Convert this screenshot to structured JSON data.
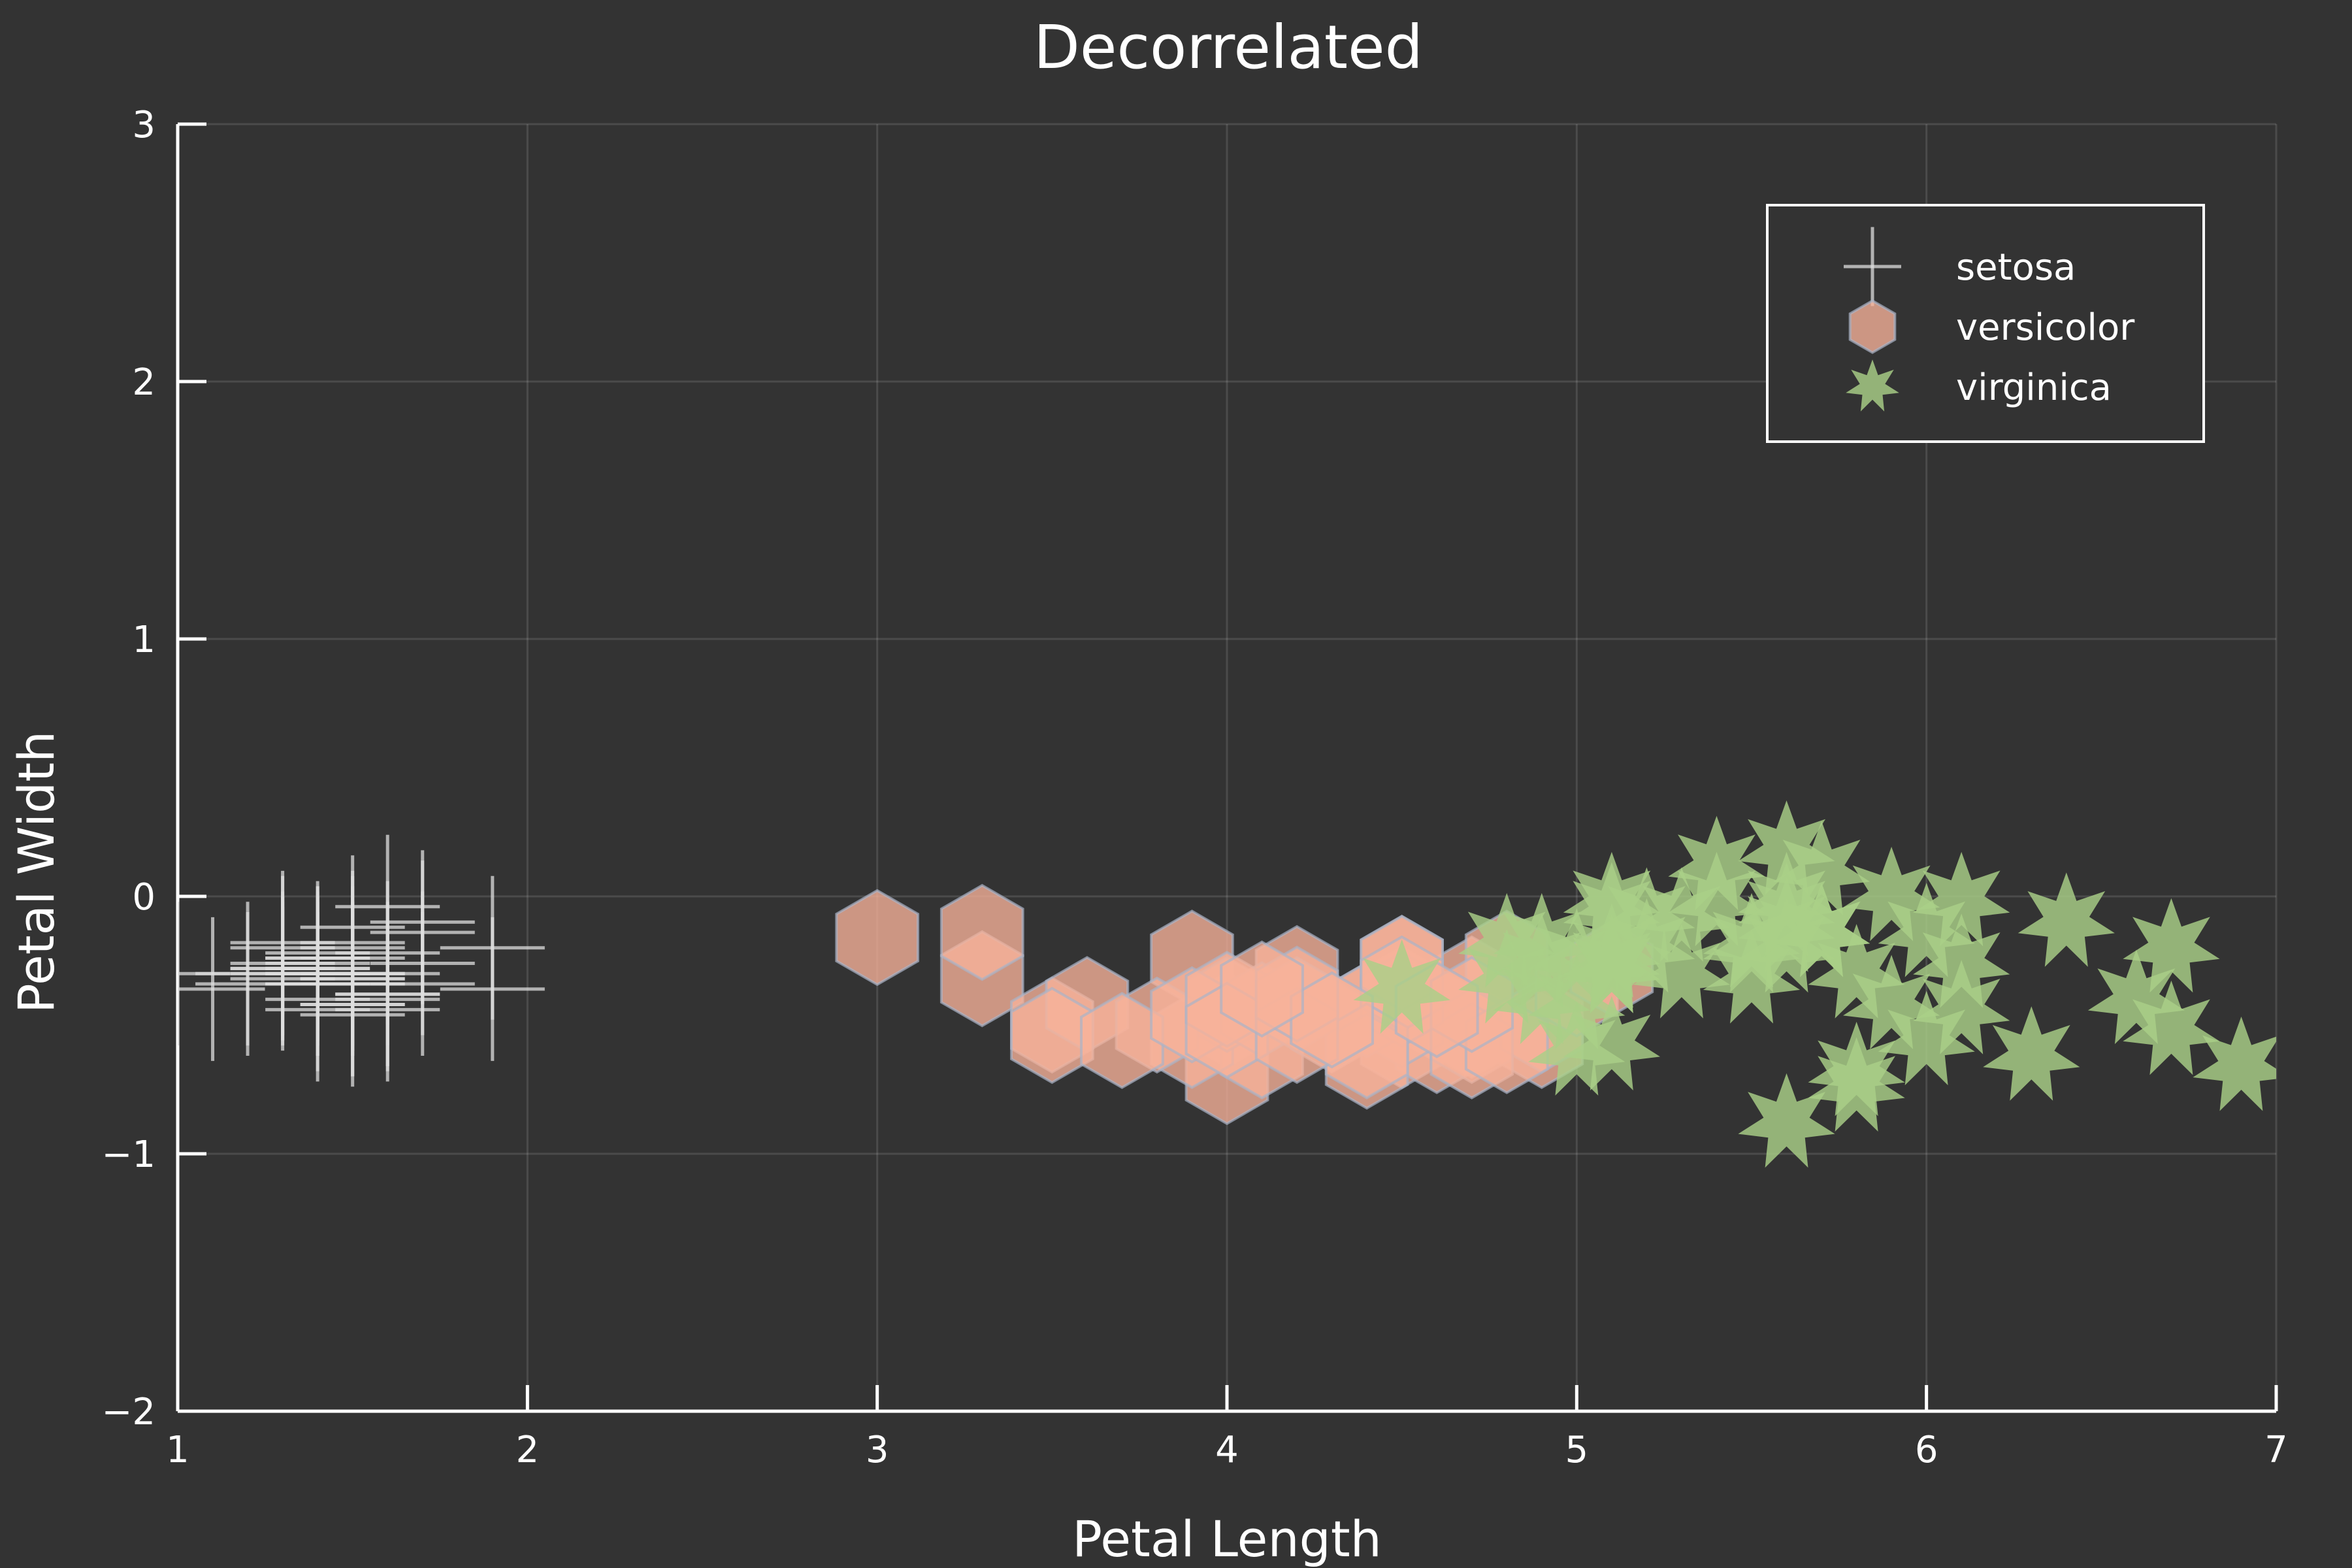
{
  "chart_data": {
    "type": "scatter",
    "title": "Decorrelated",
    "xlabel": "Petal Length",
    "ylabel": "Petal Width",
    "xlim": [
      1,
      7
    ],
    "ylim": [
      -2,
      3
    ],
    "xticks": [
      1,
      2,
      3,
      4,
      5,
      6,
      7
    ],
    "yticks": [
      -2,
      -1,
      0,
      1,
      2,
      3
    ],
    "xtick_labels": [
      "1",
      "2",
      "3",
      "4",
      "5",
      "6",
      "7"
    ],
    "ytick_labels": [
      "−2",
      "−1",
      "0",
      "1",
      "2",
      "3"
    ],
    "grid": true,
    "legend_position": "top-right",
    "background_color": "#333333",
    "series": [
      {
        "name": "setosa",
        "marker": "cross",
        "color": "#dddddd",
        "points": [
          [
            1.4,
            -0.28
          ],
          [
            1.4,
            -0.3
          ],
          [
            1.3,
            -0.32
          ],
          [
            1.5,
            -0.3
          ],
          [
            1.4,
            -0.26
          ],
          [
            1.7,
            -0.14
          ],
          [
            1.4,
            -0.24
          ],
          [
            1.5,
            -0.34
          ],
          [
            1.4,
            -0.34
          ],
          [
            1.5,
            -0.42
          ],
          [
            1.5,
            -0.34
          ],
          [
            1.6,
            -0.38
          ],
          [
            1.4,
            -0.4
          ],
          [
            1.1,
            -0.36
          ],
          [
            1.2,
            -0.3
          ],
          [
            1.5,
            -0.12
          ],
          [
            1.3,
            -0.2
          ],
          [
            1.4,
            -0.24
          ],
          [
            1.7,
            -0.26
          ],
          [
            1.5,
            -0.24
          ],
          [
            1.7,
            -0.34
          ],
          [
            1.5,
            -0.18
          ],
          [
            1.0,
            -0.3
          ],
          [
            1.7,
            -0.1
          ],
          [
            1.9,
            -0.36
          ],
          [
            1.6,
            -0.44
          ],
          [
            1.6,
            -0.22
          ],
          [
            1.5,
            -0.32
          ],
          [
            1.4,
            -0.3
          ],
          [
            1.6,
            -0.38
          ],
          [
            1.6,
            -0.4
          ],
          [
            1.5,
            -0.2
          ],
          [
            1.5,
            -0.46
          ],
          [
            1.4,
            -0.34
          ],
          [
            1.5,
            -0.42
          ],
          [
            1.2,
            -0.34
          ],
          [
            1.3,
            -0.3
          ],
          [
            1.4,
            -0.44
          ],
          [
            1.3,
            -0.28
          ],
          [
            1.5,
            -0.32
          ],
          [
            1.3,
            -0.18
          ],
          [
            1.3,
            -0.26
          ],
          [
            1.3,
            -0.28
          ],
          [
            1.6,
            -0.04
          ],
          [
            1.9,
            -0.2
          ],
          [
            1.4,
            -0.22
          ],
          [
            1.6,
            -0.3
          ],
          [
            1.4,
            -0.28
          ],
          [
            1.5,
            -0.3
          ],
          [
            1.4,
            -0.34
          ]
        ]
      },
      {
        "name": "versicolor",
        "marker": "hexagon",
        "color": "#f7b29a",
        "points": [
          [
            4.7,
            -0.52
          ],
          [
            4.5,
            -0.38
          ],
          [
            4.9,
            -0.56
          ],
          [
            4.0,
            -0.48
          ],
          [
            4.6,
            -0.46
          ],
          [
            4.5,
            -0.56
          ],
          [
            4.7,
            -0.34
          ],
          [
            3.3,
            -0.32
          ],
          [
            4.6,
            -0.58
          ],
          [
            3.9,
            -0.24
          ],
          [
            3.5,
            -0.5
          ],
          [
            4.2,
            -0.3
          ],
          [
            4.0,
            -0.7
          ],
          [
            4.7,
            -0.54
          ],
          [
            3.6,
            -0.42
          ],
          [
            4.4,
            -0.44
          ],
          [
            4.5,
            -0.26
          ],
          [
            4.1,
            -0.6
          ],
          [
            4.5,
            -0.48
          ],
          [
            3.9,
            -0.56
          ],
          [
            4.8,
            -0.24
          ],
          [
            4.0,
            -0.42
          ],
          [
            4.9,
            -0.5
          ],
          [
            4.7,
            -0.6
          ],
          [
            4.3,
            -0.5
          ],
          [
            4.4,
            -0.44
          ],
          [
            4.8,
            -0.58
          ],
          [
            5.0,
            -0.36
          ],
          [
            4.5,
            -0.4
          ],
          [
            3.5,
            -0.54
          ],
          [
            3.8,
            -0.5
          ],
          [
            3.7,
            -0.56
          ],
          [
            3.9,
            -0.46
          ],
          [
            5.1,
            -0.28
          ],
          [
            4.5,
            -0.26
          ],
          [
            4.5,
            -0.34
          ],
          [
            4.7,
            -0.42
          ],
          [
            4.4,
            -0.64
          ],
          [
            4.1,
            -0.44
          ],
          [
            4.0,
            -0.4
          ],
          [
            4.4,
            -0.6
          ],
          [
            4.6,
            -0.44
          ],
          [
            4.0,
            -0.52
          ],
          [
            3.3,
            -0.14
          ],
          [
            4.2,
            -0.42
          ],
          [
            4.2,
            -0.54
          ],
          [
            4.2,
            -0.38
          ],
          [
            4.3,
            -0.48
          ],
          [
            3.0,
            -0.16
          ],
          [
            4.1,
            -0.36
          ]
        ]
      },
      {
        "name": "virginica",
        "marker": "star",
        "color": "#a9cf88",
        "points": [
          [
            6.0,
            -0.14
          ],
          [
            5.1,
            -0.28
          ],
          [
            5.9,
            -0.42
          ],
          [
            5.6,
            -0.2
          ],
          [
            5.8,
            -0.3
          ],
          [
            6.6,
            -0.4
          ],
          [
            4.5,
            -0.36
          ],
          [
            6.3,
            -0.62
          ],
          [
            5.8,
            -0.68
          ],
          [
            6.1,
            -0.02
          ],
          [
            5.1,
            -0.22
          ],
          [
            5.3,
            -0.3
          ],
          [
            5.5,
            -0.18
          ],
          [
            5.0,
            -0.24
          ],
          [
            5.1,
            -0.06
          ],
          [
            5.3,
            -0.08
          ],
          [
            5.5,
            -0.32
          ],
          [
            6.7,
            -0.2
          ],
          [
            6.9,
            -0.66
          ],
          [
            5.0,
            -0.6
          ],
          [
            5.7,
            -0.14
          ],
          [
            4.9,
            -0.18
          ],
          [
            6.7,
            -0.52
          ],
          [
            4.9,
            -0.4
          ],
          [
            5.7,
            -0.14
          ],
          [
            6.0,
            -0.56
          ],
          [
            4.8,
            -0.32
          ],
          [
            4.9,
            -0.26
          ],
          [
            5.6,
            -0.12
          ],
          [
            5.8,
            -0.74
          ],
          [
            6.1,
            -0.44
          ],
          [
            6.4,
            -0.1
          ],
          [
            5.6,
            -0.02
          ],
          [
            5.1,
            -0.58
          ],
          [
            5.6,
            -0.88
          ],
          [
            6.1,
            -0.26
          ],
          [
            5.6,
            0.18
          ],
          [
            5.5,
            -0.2
          ],
          [
            4.8,
            -0.18
          ],
          [
            5.4,
            -0.02
          ],
          [
            5.6,
            -0.06
          ],
          [
            5.1,
            -0.02
          ],
          [
            5.1,
            -0.28
          ],
          [
            5.9,
            0.0
          ],
          [
            5.7,
            0.1
          ],
          [
            5.2,
            -0.08
          ],
          [
            5.0,
            -0.42
          ],
          [
            5.2,
            -0.2
          ],
          [
            5.4,
            0.12
          ],
          [
            5.1,
            -0.26
          ]
        ]
      }
    ]
  }
}
